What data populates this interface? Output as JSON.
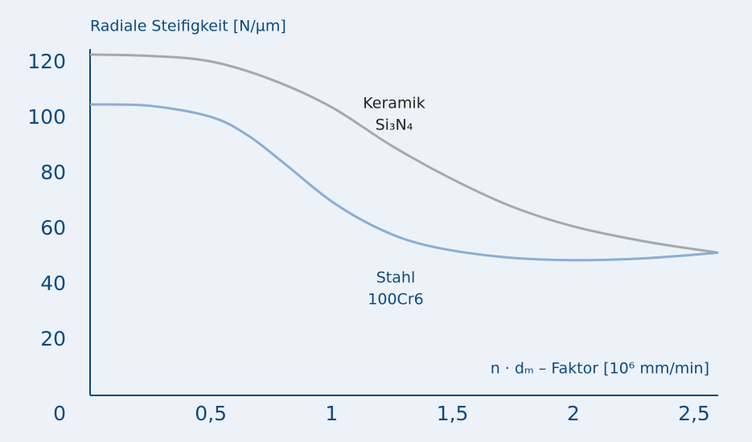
{
  "chart_data": {
    "type": "line",
    "y_axis_title": "Radiale Steifigkeit [N/µm]",
    "x_axis_title": "n · dₘ – Faktor [10⁶ mm/min]",
    "xlim": [
      0,
      2.6
    ],
    "ylim": [
      0,
      125
    ],
    "xticks": [
      {
        "value": 0.5,
        "label": "0,5"
      },
      1,
      {
        "value": 1.5,
        "label": "1,5"
      },
      2,
      {
        "value": 2.5,
        "label": "2,5"
      }
    ],
    "yticks": [
      0,
      20,
      40,
      60,
      80,
      100,
      120
    ],
    "grid": false,
    "series": [
      {
        "name": "Keramik",
        "subname": "Si₃N₄",
        "color": "#a7a8aa",
        "x": [
          0,
          0.25,
          0.5,
          0.75,
          1,
          1.25,
          1.5,
          1.75,
          2,
          2.3,
          2.6
        ],
        "values": [
          123,
          122.5,
          120.5,
          114,
          104,
          90,
          78,
          68,
          61,
          55.5,
          51.5
        ]
      },
      {
        "name": "Stahl",
        "subname": "100Cr6",
        "color": "#8aaed3",
        "x": [
          0,
          0.25,
          0.5,
          0.65,
          0.8,
          1,
          1.2,
          1.4,
          1.7,
          2,
          2.3,
          2.6
        ],
        "values": [
          105,
          104.5,
          100.5,
          94,
          84,
          70,
          60,
          54,
          50,
          48.8,
          49.5,
          51.5
        ]
      }
    ]
  }
}
